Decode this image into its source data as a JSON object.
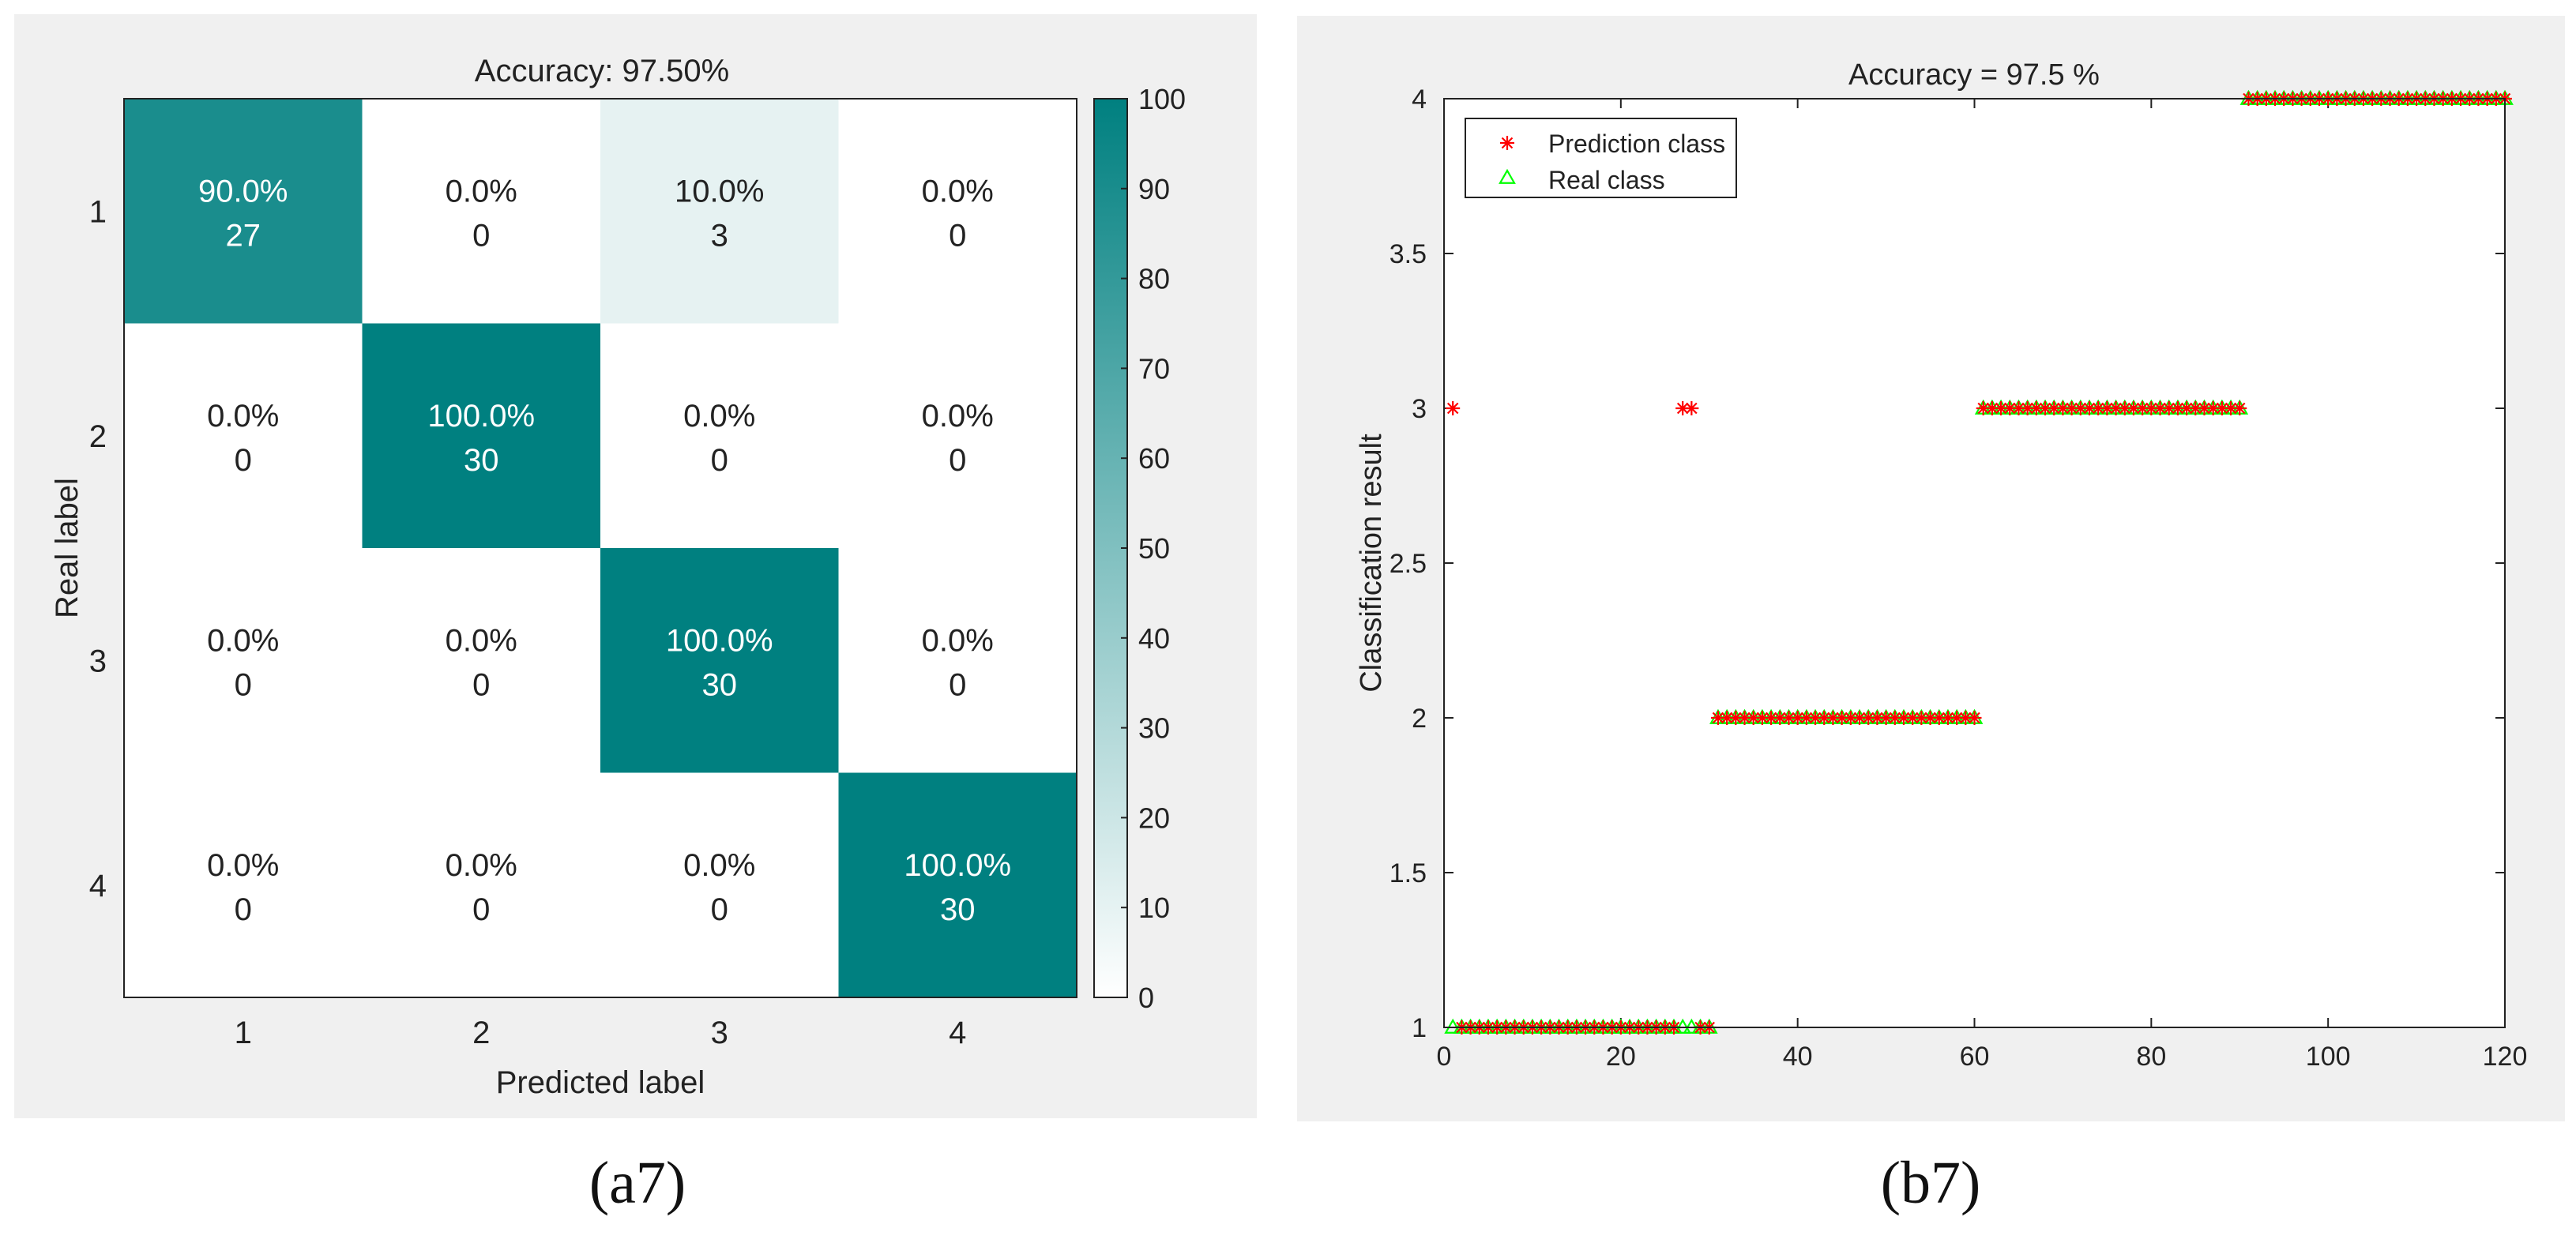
{
  "chart_data": [
    {
      "type": "heatmap",
      "title": "Accuracy: 97.50%",
      "xlabel": "Predicted label",
      "ylabel": "Real label",
      "categories": [
        "1",
        "2",
        "3",
        "4"
      ],
      "cells": [
        [
          {
            "pct": "90.0%",
            "count": "27",
            "value": 90
          },
          {
            "pct": "0.0%",
            "count": "0",
            "value": 0
          },
          {
            "pct": "10.0%",
            "count": "3",
            "value": 10
          },
          {
            "pct": "0.0%",
            "count": "0",
            "value": 0
          }
        ],
        [
          {
            "pct": "0.0%",
            "count": "0",
            "value": 0
          },
          {
            "pct": "100.0%",
            "count": "30",
            "value": 100
          },
          {
            "pct": "0.0%",
            "count": "0",
            "value": 0
          },
          {
            "pct": "0.0%",
            "count": "0",
            "value": 0
          }
        ],
        [
          {
            "pct": "0.0%",
            "count": "0",
            "value": 0
          },
          {
            "pct": "0.0%",
            "count": "0",
            "value": 0
          },
          {
            "pct": "100.0%",
            "count": "30",
            "value": 100
          },
          {
            "pct": "0.0%",
            "count": "0",
            "value": 0
          }
        ],
        [
          {
            "pct": "0.0%",
            "count": "0",
            "value": 0
          },
          {
            "pct": "0.0%",
            "count": "0",
            "value": 0
          },
          {
            "pct": "0.0%",
            "count": "0",
            "value": 0
          },
          {
            "pct": "100.0%",
            "count": "30",
            "value": 100
          }
        ]
      ],
      "colorbar": {
        "range": [
          0,
          100
        ],
        "ticks": [
          "0",
          "10",
          "20",
          "30",
          "40",
          "50",
          "60",
          "70",
          "80",
          "90",
          "100"
        ],
        "color_low": "#ffffff",
        "color_high": "#008080"
      }
    },
    {
      "type": "scatter",
      "title": "Accuracy  = 97.5 %",
      "xlabel": "",
      "ylabel": "Classification result",
      "xlim": [
        0,
        120
      ],
      "ylim": [
        1,
        4
      ],
      "xticks": [
        "0",
        "20",
        "40",
        "60",
        "80",
        "100",
        "120"
      ],
      "yticks": [
        "1",
        "1.5",
        "2",
        "2.5",
        "3",
        "3.5",
        "4"
      ],
      "legend_position": "top-left",
      "series": [
        {
          "name": "Prediction class",
          "marker": "asterisk",
          "color": "#ff0000",
          "x": [
            1,
            2,
            3,
            4,
            5,
            6,
            7,
            8,
            9,
            10,
            11,
            12,
            13,
            14,
            15,
            16,
            17,
            18,
            19,
            20,
            21,
            22,
            23,
            24,
            25,
            26,
            27,
            28,
            29,
            30,
            31,
            32,
            33,
            34,
            35,
            36,
            37,
            38,
            39,
            40,
            41,
            42,
            43,
            44,
            45,
            46,
            47,
            48,
            49,
            50,
            51,
            52,
            53,
            54,
            55,
            56,
            57,
            58,
            59,
            60,
            61,
            62,
            63,
            64,
            65,
            66,
            67,
            68,
            69,
            70,
            71,
            72,
            73,
            74,
            75,
            76,
            77,
            78,
            79,
            80,
            81,
            82,
            83,
            84,
            85,
            86,
            87,
            88,
            89,
            90,
            91,
            92,
            93,
            94,
            95,
            96,
            97,
            98,
            99,
            100,
            101,
            102,
            103,
            104,
            105,
            106,
            107,
            108,
            109,
            110,
            111,
            112,
            113,
            114,
            115,
            116,
            117,
            118,
            119,
            120
          ],
          "y": [
            3,
            1,
            1,
            1,
            1,
            1,
            1,
            1,
            1,
            1,
            1,
            1,
            1,
            1,
            1,
            1,
            1,
            1,
            1,
            1,
            1,
            1,
            1,
            1,
            1,
            1,
            3,
            3,
            1,
            1,
            2,
            2,
            2,
            2,
            2,
            2,
            2,
            2,
            2,
            2,
            2,
            2,
            2,
            2,
            2,
            2,
            2,
            2,
            2,
            2,
            2,
            2,
            2,
            2,
            2,
            2,
            2,
            2,
            2,
            2,
            3,
            3,
            3,
            3,
            3,
            3,
            3,
            3,
            3,
            3,
            3,
            3,
            3,
            3,
            3,
            3,
            3,
            3,
            3,
            3,
            3,
            3,
            3,
            3,
            3,
            3,
            3,
            3,
            3,
            3,
            4,
            4,
            4,
            4,
            4,
            4,
            4,
            4,
            4,
            4,
            4,
            4,
            4,
            4,
            4,
            4,
            4,
            4,
            4,
            4,
            4,
            4,
            4,
            4,
            4,
            4,
            4,
            4,
            4,
            4
          ]
        },
        {
          "name": "Real class",
          "marker": "triangle",
          "color": "#00ff00",
          "x": [
            1,
            2,
            3,
            4,
            5,
            6,
            7,
            8,
            9,
            10,
            11,
            12,
            13,
            14,
            15,
            16,
            17,
            18,
            19,
            20,
            21,
            22,
            23,
            24,
            25,
            26,
            27,
            28,
            29,
            30,
            31,
            32,
            33,
            34,
            35,
            36,
            37,
            38,
            39,
            40,
            41,
            42,
            43,
            44,
            45,
            46,
            47,
            48,
            49,
            50,
            51,
            52,
            53,
            54,
            55,
            56,
            57,
            58,
            59,
            60,
            61,
            62,
            63,
            64,
            65,
            66,
            67,
            68,
            69,
            70,
            71,
            72,
            73,
            74,
            75,
            76,
            77,
            78,
            79,
            80,
            81,
            82,
            83,
            84,
            85,
            86,
            87,
            88,
            89,
            90,
            91,
            92,
            93,
            94,
            95,
            96,
            97,
            98,
            99,
            100,
            101,
            102,
            103,
            104,
            105,
            106,
            107,
            108,
            109,
            110,
            111,
            112,
            113,
            114,
            115,
            116,
            117,
            118,
            119,
            120
          ],
          "y": [
            1,
            1,
            1,
            1,
            1,
            1,
            1,
            1,
            1,
            1,
            1,
            1,
            1,
            1,
            1,
            1,
            1,
            1,
            1,
            1,
            1,
            1,
            1,
            1,
            1,
            1,
            1,
            1,
            1,
            1,
            2,
            2,
            2,
            2,
            2,
            2,
            2,
            2,
            2,
            2,
            2,
            2,
            2,
            2,
            2,
            2,
            2,
            2,
            2,
            2,
            2,
            2,
            2,
            2,
            2,
            2,
            2,
            2,
            2,
            2,
            3,
            3,
            3,
            3,
            3,
            3,
            3,
            3,
            3,
            3,
            3,
            3,
            3,
            3,
            3,
            3,
            3,
            3,
            3,
            3,
            3,
            3,
            3,
            3,
            3,
            3,
            3,
            3,
            3,
            3,
            4,
            4,
            4,
            4,
            4,
            4,
            4,
            4,
            4,
            4,
            4,
            4,
            4,
            4,
            4,
            4,
            4,
            4,
            4,
            4,
            4,
            4,
            4,
            4,
            4,
            4,
            4,
            4,
            4,
            4
          ]
        }
      ]
    }
  ],
  "panel_labels": {
    "left": "(a7)",
    "right": "(b7)"
  }
}
